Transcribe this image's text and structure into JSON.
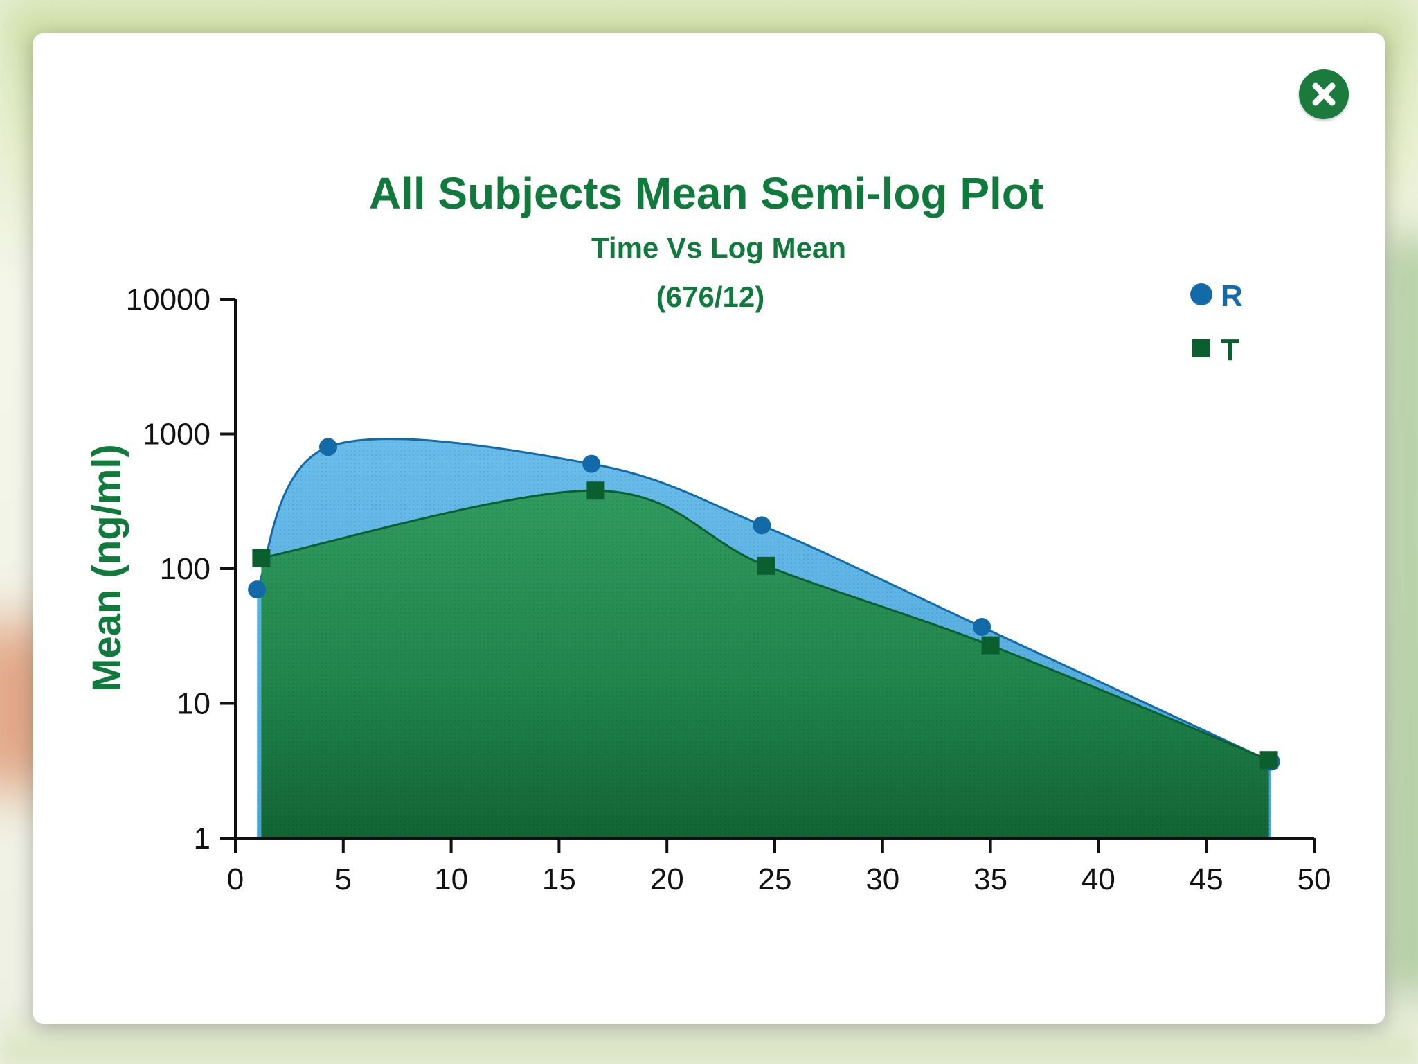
{
  "modal": {
    "close_icon": "close-circle-icon"
  },
  "colors": {
    "title": "#0f7a3c",
    "series_r": "#136aa8",
    "series_r_fill": "#5cb4e2",
    "series_t": "#0b5e2e",
    "series_t_fill": "#1f8a4c",
    "axis": "#111111",
    "close_button": "#1a7b3d"
  },
  "chart_data": {
    "type": "area",
    "title": "All Subjects Mean Semi-log Plot",
    "subtitle": "Time Vs Log Mean",
    "subtitle2": "(676/12)",
    "xlabel": "",
    "ylabel": "Mean (ng/ml)",
    "xlim": [
      0,
      50
    ],
    "ylim": [
      1,
      10000
    ],
    "y_scale": "log",
    "x_ticks": [
      "0",
      "5",
      "10",
      "15",
      "20",
      "25",
      "30",
      "35",
      "40",
      "45",
      "50"
    ],
    "y_ticks": [
      "1",
      "10",
      "100",
      "1000",
      "10000"
    ],
    "grid": false,
    "legend_position": "top-right",
    "series": [
      {
        "name": "R",
        "marker": "circle",
        "x": [
          1,
          4.3,
          16.5,
          24.4,
          34.6,
          48
        ],
        "y": [
          70,
          800,
          600,
          210,
          37,
          3.7
        ]
      },
      {
        "name": "T",
        "marker": "square",
        "x": [
          1.2,
          16.7,
          24.6,
          35,
          47.9
        ],
        "y": [
          120,
          380,
          105,
          27,
          3.8
        ]
      }
    ]
  }
}
